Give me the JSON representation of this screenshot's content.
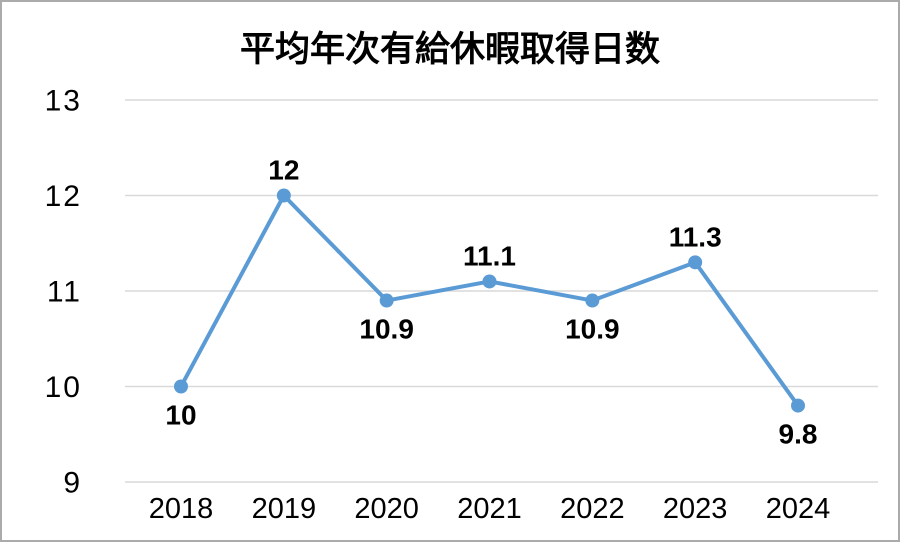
{
  "chart_data": {
    "type": "line",
    "title": "平均年次有給休暇取得日数",
    "categories": [
      "2018",
      "2019",
      "2020",
      "2021",
      "2022",
      "2023",
      "2024"
    ],
    "values": [
      10,
      12,
      10.9,
      11.1,
      10.9,
      11.3,
      9.8
    ],
    "data_labels": [
      "10",
      "12",
      "10.9",
      "11.1",
      "10.9",
      "11.3",
      "9.8"
    ],
    "data_label_placement": [
      "below",
      "above",
      "below",
      "above",
      "below",
      "above",
      "below"
    ],
    "xlabel": "",
    "ylabel": "",
    "ylim": [
      9,
      13
    ],
    "yticks": [
      13,
      12,
      11,
      10,
      9
    ],
    "grid": true,
    "legend": "none",
    "colors": {
      "series": "#5B9BD5",
      "gridline": "#D9D9D9",
      "text": "#000000",
      "frame_border": "#ABABAB",
      "background": "#FFFFFF"
    }
  }
}
